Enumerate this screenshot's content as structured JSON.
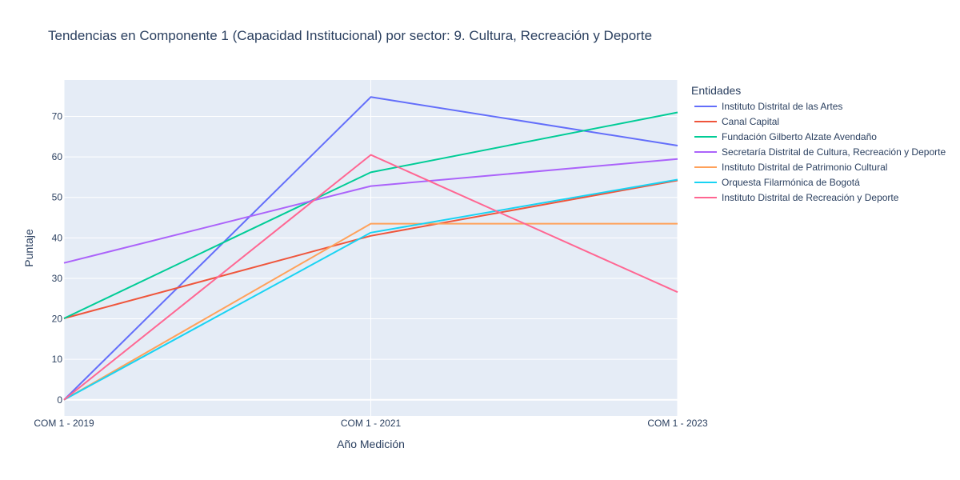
{
  "chart_data": {
    "type": "line",
    "title": "Tendencias en Componente 1 (Capacidad Institucional) por sector: 9. Cultura, Recreación y Deporte",
    "xlabel": "Año Medición",
    "ylabel": "Puntaje",
    "categories": [
      "COM 1 - 2019",
      "COM 1 - 2021",
      "COM 1 - 2023"
    ],
    "ylim": [
      -4,
      79
    ],
    "yticks": [
      0,
      10,
      20,
      30,
      40,
      50,
      60,
      70
    ],
    "grid": true,
    "legend": {
      "title": "Entidades",
      "placement": "right"
    },
    "series": [
      {
        "name": "Instituto Distrital de las Artes",
        "color": "#636efa",
        "values": [
          0,
          74.8,
          62.8
        ]
      },
      {
        "name": "Canal Capital",
        "color": "#EF553B",
        "values": [
          20.1,
          40.5,
          54.2
        ]
      },
      {
        "name": "Fundación Gilberto Alzate Avendaño",
        "color": "#00cc96",
        "values": [
          20.1,
          56.2,
          71.0
        ]
      },
      {
        "name": "Secretaría Distrital de Cultura, Recreación y Deporte",
        "color": "#ab63fa",
        "values": [
          33.8,
          52.8,
          59.5
        ]
      },
      {
        "name": "Instituto Distrital de Patrimonio Cultural",
        "color": "#FFA15A",
        "values": [
          0,
          43.5,
          43.5
        ]
      },
      {
        "name": "Orquesta Filarmónica de Bogotá",
        "color": "#19d3f3",
        "values": [
          0,
          41.3,
          54.4
        ]
      },
      {
        "name": "Instituto Distrital de Recreación y Deporte",
        "color": "#FF6692",
        "values": [
          0,
          60.5,
          26.6
        ]
      }
    ]
  }
}
